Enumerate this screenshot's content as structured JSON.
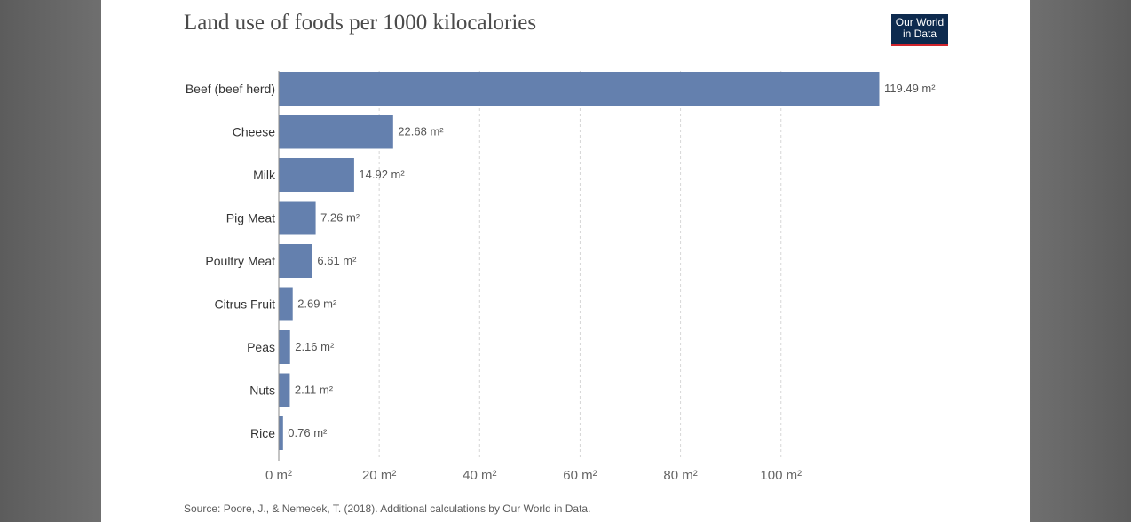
{
  "header": {
    "title": "Land use of foods per 1000 kilocalories",
    "logo_line1": "Our World",
    "logo_line2": "in Data"
  },
  "footer": {
    "source": "Source: Poore, J., & Nemecek, T. (2018). Additional calculations by Our World in Data."
  },
  "colors": {
    "bar": "#6480ae",
    "logo_bg": "#0d2a4e",
    "logo_accent": "#d0242c"
  },
  "chart_data": {
    "type": "bar",
    "orientation": "horizontal",
    "title": "Land use of foods per 1000 kilocalories",
    "categories": [
      "Beef (beef herd)",
      "Cheese",
      "Milk",
      "Pig Meat",
      "Poultry Meat",
      "Citrus Fruit",
      "Peas",
      "Nuts",
      "Rice"
    ],
    "values": [
      119.49,
      22.68,
      14.92,
      7.26,
      6.61,
      2.69,
      2.16,
      2.11,
      0.76
    ],
    "value_labels": [
      "119.49 m²",
      "22.68 m²",
      "14.92 m²",
      "7.26 m²",
      "6.61 m²",
      "2.69 m²",
      "2.16 m²",
      "2.11 m²",
      "0.76 m²"
    ],
    "xlim": [
      0,
      120
    ],
    "ticks": [
      0,
      20,
      40,
      60,
      80,
      100
    ],
    "tick_labels": [
      "0 m²",
      "20 m²",
      "40 m²",
      "60 m²",
      "80 m²",
      "100 m²"
    ],
    "xlabel": "",
    "ylabel": "",
    "grid": true
  }
}
